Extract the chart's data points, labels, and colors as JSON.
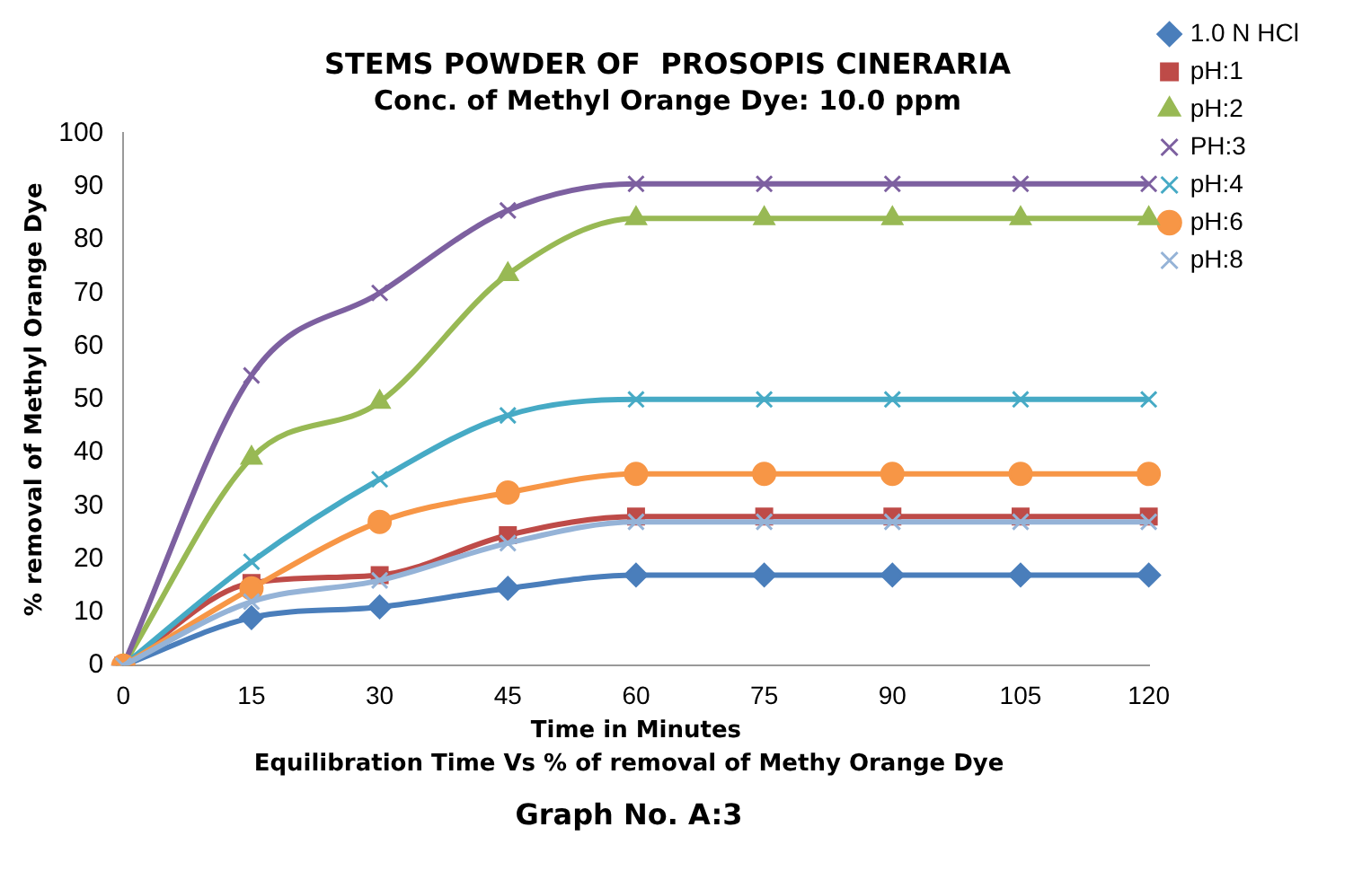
{
  "chart_data": {
    "type": "line",
    "title": "STEMS POWDER OF  PROSOPIS CINERARIA",
    "subtitle": "Conc. of Methyl Orange Dye: 10.0 ppm",
    "xlabel": "Time in Minutes",
    "ylabel": "% removal of Methyl Orange Dye",
    "annotations": [
      "Equilibration Time Vs % of removal of Methy Orange Dye",
      "Graph No. A:3"
    ],
    "categories": [
      "0",
      "15",
      "30",
      "45",
      "60",
      "75",
      "90",
      "105",
      "120"
    ],
    "ylim": [
      0,
      100
    ],
    "yticks": [
      0,
      10,
      20,
      30,
      40,
      50,
      60,
      70,
      80,
      90,
      100
    ],
    "grid": false,
    "legend": "right",
    "series": [
      {
        "name": "1.0 N HCl",
        "color": "#4a7ebb",
        "marker": "diamond",
        "values": [
          0,
          9,
          11,
          14.5,
          17,
          17,
          17,
          17,
          17
        ]
      },
      {
        "name": "pH:1",
        "color": "#be4b48",
        "marker": "square",
        "values": [
          0,
          15.5,
          17,
          24.5,
          28,
          28,
          28,
          28,
          28
        ]
      },
      {
        "name": "pH:2",
        "color": "#98b954",
        "marker": "triangle",
        "values": [
          0,
          39,
          49.5,
          73.5,
          84,
          84,
          84,
          84,
          84
        ]
      },
      {
        "name": "PH:3",
        "color": "#7d60a0",
        "marker": "cross",
        "values": [
          0,
          54.5,
          70,
          85.5,
          90.5,
          90.5,
          90.5,
          90.5,
          90.5
        ]
      },
      {
        "name": "pH:4",
        "color": "#46aac5",
        "marker": "cross",
        "values": [
          0,
          19.5,
          35,
          47,
          50,
          50,
          50,
          50,
          50
        ]
      },
      {
        "name": "pH:6",
        "color": "#f79646",
        "marker": "circle",
        "values": [
          0,
          14.5,
          27,
          32.5,
          36,
          36,
          36,
          36,
          36
        ]
      },
      {
        "name": "pH:8",
        "color": "#95b3d7",
        "marker": "cross",
        "values": [
          0,
          12,
          16,
          23,
          27,
          27,
          27,
          27,
          27
        ]
      }
    ]
  }
}
